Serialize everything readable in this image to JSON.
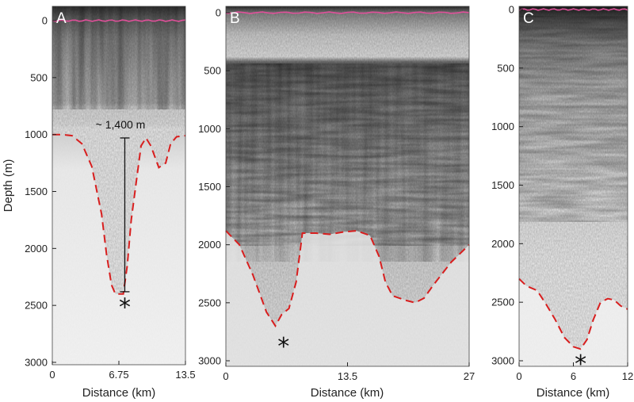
{
  "figure": {
    "y_axis_label": "Depth (m)",
    "x_axis_label": "Distance (km)",
    "y_ticks": [
      "0",
      "500",
      "1000",
      "1500",
      "2000",
      "2500",
      "3000"
    ],
    "depth_range_m": [
      0,
      3050
    ],
    "annotation": "~ 1,400 m",
    "marker_symbol": "*"
  },
  "panels": [
    {
      "label": "A",
      "x_ticks": [
        "0",
        "6.75",
        "13.5"
      ],
      "x_range_km": [
        0,
        13.5
      ],
      "bed_trace": [
        [
          0,
          1000
        ],
        [
          1,
          1000
        ],
        [
          2,
          1010
        ],
        [
          3,
          1080
        ],
        [
          4,
          1280
        ],
        [
          5,
          1700
        ],
        [
          5.5,
          2050
        ],
        [
          6,
          2320
        ],
        [
          6.4,
          2400
        ],
        [
          7.2,
          2400
        ],
        [
          7.6,
          2150
        ],
        [
          8,
          1750
        ],
        [
          8.6,
          1360
        ],
        [
          9,
          1100
        ],
        [
          9.5,
          1030
        ],
        [
          10,
          1100
        ],
        [
          10.8,
          1290
        ],
        [
          11.5,
          1250
        ],
        [
          12,
          1080
        ],
        [
          12.6,
          1020
        ],
        [
          13.5,
          1010
        ]
      ],
      "bed_trace_style": "dashed",
      "bed_trace_color": "#d81e1e",
      "surface_color": "#e0509a",
      "thickness_bar_m": [
        1030,
        2380
      ],
      "thickness_bar_x_km": 7.35,
      "asterisk_at": [
        7.35,
        2490
      ]
    },
    {
      "label": "B",
      "x_ticks": [
        "0",
        "13.5",
        "27"
      ],
      "x_range_km": [
        0,
        27
      ],
      "bed_trace": [
        [
          0,
          1880
        ],
        [
          1.5,
          2000
        ],
        [
          3,
          2260
        ],
        [
          4.5,
          2580
        ],
        [
          5.5,
          2700
        ],
        [
          6.2,
          2600
        ],
        [
          7,
          2550
        ],
        [
          7.8,
          2320
        ],
        [
          8.5,
          1900
        ],
        [
          10,
          1900
        ],
        [
          11.5,
          1910
        ],
        [
          13,
          1890
        ],
        [
          14.5,
          1880
        ],
        [
          16,
          1920
        ],
        [
          17,
          2100
        ],
        [
          17.7,
          2320
        ],
        [
          18.5,
          2440
        ],
        [
          20,
          2480
        ],
        [
          21,
          2500
        ],
        [
          22,
          2460
        ],
        [
          23,
          2350
        ],
        [
          25,
          2150
        ],
        [
          27,
          2000
        ]
      ],
      "bed_trace_style": "dashed",
      "bed_trace_color": "#d81e1e",
      "surface_color": "#e0509a",
      "asterisk_at": [
        6.4,
        2850
      ]
    },
    {
      "label": "C",
      "x_ticks": [
        "0",
        "6",
        "12"
      ],
      "x_range_km": [
        0,
        12
      ],
      "bed_trace": [
        [
          0,
          2300
        ],
        [
          0.8,
          2360
        ],
        [
          2,
          2400
        ],
        [
          3,
          2520
        ],
        [
          4,
          2650
        ],
        [
          5,
          2800
        ],
        [
          6,
          2880
        ],
        [
          6.8,
          2900
        ],
        [
          7.5,
          2820
        ],
        [
          8.2,
          2650
        ],
        [
          9,
          2500
        ],
        [
          9.8,
          2470
        ],
        [
          10.5,
          2480
        ],
        [
          11.2,
          2530
        ],
        [
          12,
          2560
        ]
      ],
      "bed_trace_style": "dashed",
      "bed_trace_color": "#d81e1e",
      "surface_color": "#e0509a",
      "asterisk_at": [
        6.8,
        3000
      ]
    }
  ]
}
